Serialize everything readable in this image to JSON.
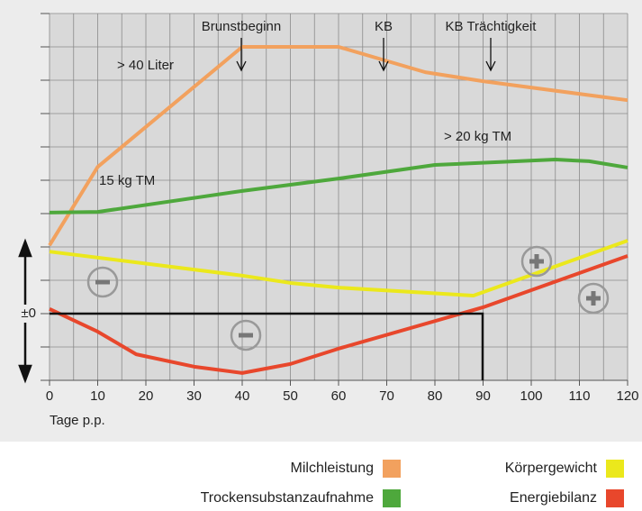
{
  "chart_data": {
    "type": "line",
    "x_label": "Tage p.p.",
    "xlim": [
      0,
      120
    ],
    "xticks": [
      0,
      10,
      20,
      30,
      40,
      50,
      60,
      70,
      80,
      90,
      100,
      110,
      120
    ],
    "ylim": [
      -2,
      9
    ],
    "yticks": [
      {
        "value": 0,
        "label": "±0"
      }
    ],
    "grid": true,
    "annotations": [
      "Brunstbeginn",
      "KB",
      "KB Trächtigkeit",
      "> 40 Liter",
      "15 kg TM",
      "> 20 kg TM"
    ],
    "series": [
      {
        "name": "Milchleistung",
        "color": "#f2a15e",
        "x": [
          0,
          10,
          40,
          60,
          78,
          90,
          120
        ],
        "values": [
          2.05,
          4.4,
          8.0,
          8.0,
          7.24,
          6.97,
          6.4
        ]
      },
      {
        "name": "Körpergewicht",
        "color": "#ebe81c",
        "x": [
          0,
          40,
          50,
          60,
          88,
          120
        ],
        "values": [
          1.86,
          1.14,
          0.92,
          0.78,
          0.54,
          2.19
        ]
      },
      {
        "name": "Trockensubstanzaufnahme",
        "color": "#4ea83c",
        "x": [
          0,
          10,
          40,
          60,
          80,
          105,
          112,
          120
        ],
        "values": [
          3.03,
          3.05,
          3.68,
          4.05,
          4.46,
          4.62,
          4.57,
          4.38
        ]
      },
      {
        "name": "Energiebilanz",
        "color": "#e8472c",
        "x": [
          0,
          10,
          18,
          30,
          40,
          50,
          60,
          90,
          120
        ],
        "values": [
          0.14,
          -0.54,
          -1.22,
          -1.59,
          -1.78,
          -1.51,
          -1.05,
          0.19,
          1.73
        ]
      }
    ]
  }
}
